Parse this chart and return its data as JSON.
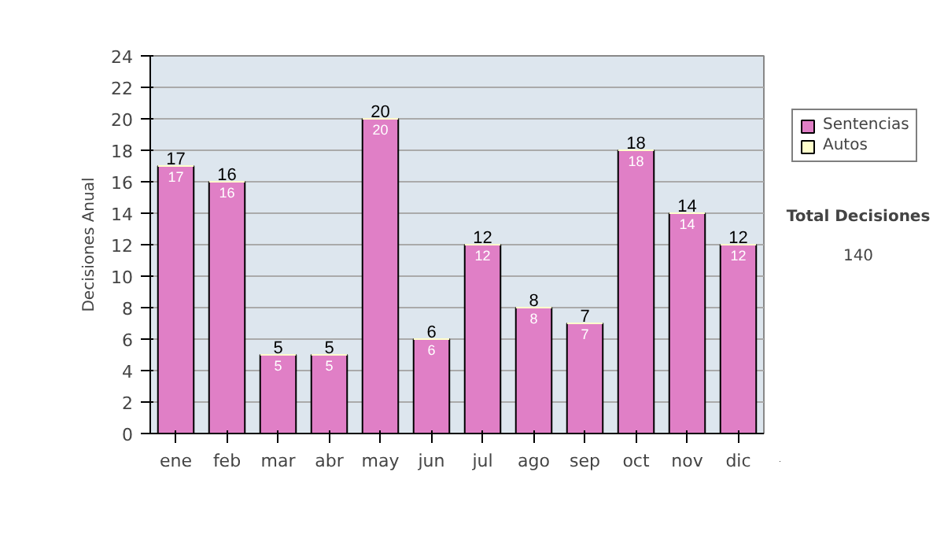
{
  "chart_data": {
    "type": "bar",
    "stacked": true,
    "ylabel": "Decisiones Anual",
    "categories": [
      "ene",
      "feb",
      "mar",
      "abr",
      "may",
      "jun",
      "jul",
      "ago",
      "sep",
      "oct",
      "nov",
      "dic"
    ],
    "series": [
      {
        "name": "Sentencias",
        "color": "#e07fc6",
        "values": [
          17,
          16,
          5,
          5,
          20,
          6,
          12,
          8,
          7,
          18,
          14,
          12
        ],
        "value_labels": [
          "17",
          "16",
          "5",
          "5",
          "20",
          "6",
          "12",
          "8",
          "7",
          "18",
          "14",
          "12"
        ]
      },
      {
        "name": "Autos",
        "color": "#ffffcc",
        "values": [
          0,
          0,
          0,
          0,
          0,
          0,
          0,
          0,
          0,
          0,
          0,
          0
        ],
        "value_labels": [
          null,
          null,
          null,
          null,
          null,
          null,
          null,
          null,
          null,
          null,
          null,
          null
        ]
      }
    ],
    "totals": [
      "17",
      "16",
      "5",
      "5",
      "20",
      "6",
      "12",
      "8",
      "7",
      "18",
      "14",
      "12"
    ],
    "ylim": [
      0,
      24
    ],
    "yticks": [
      0,
      2,
      4,
      6,
      8,
      10,
      12,
      14,
      16,
      18,
      20,
      22,
      24
    ],
    "grid": "y",
    "legend": "right",
    "annotations": [
      "Total Decisiones",
      "140"
    ]
  }
}
